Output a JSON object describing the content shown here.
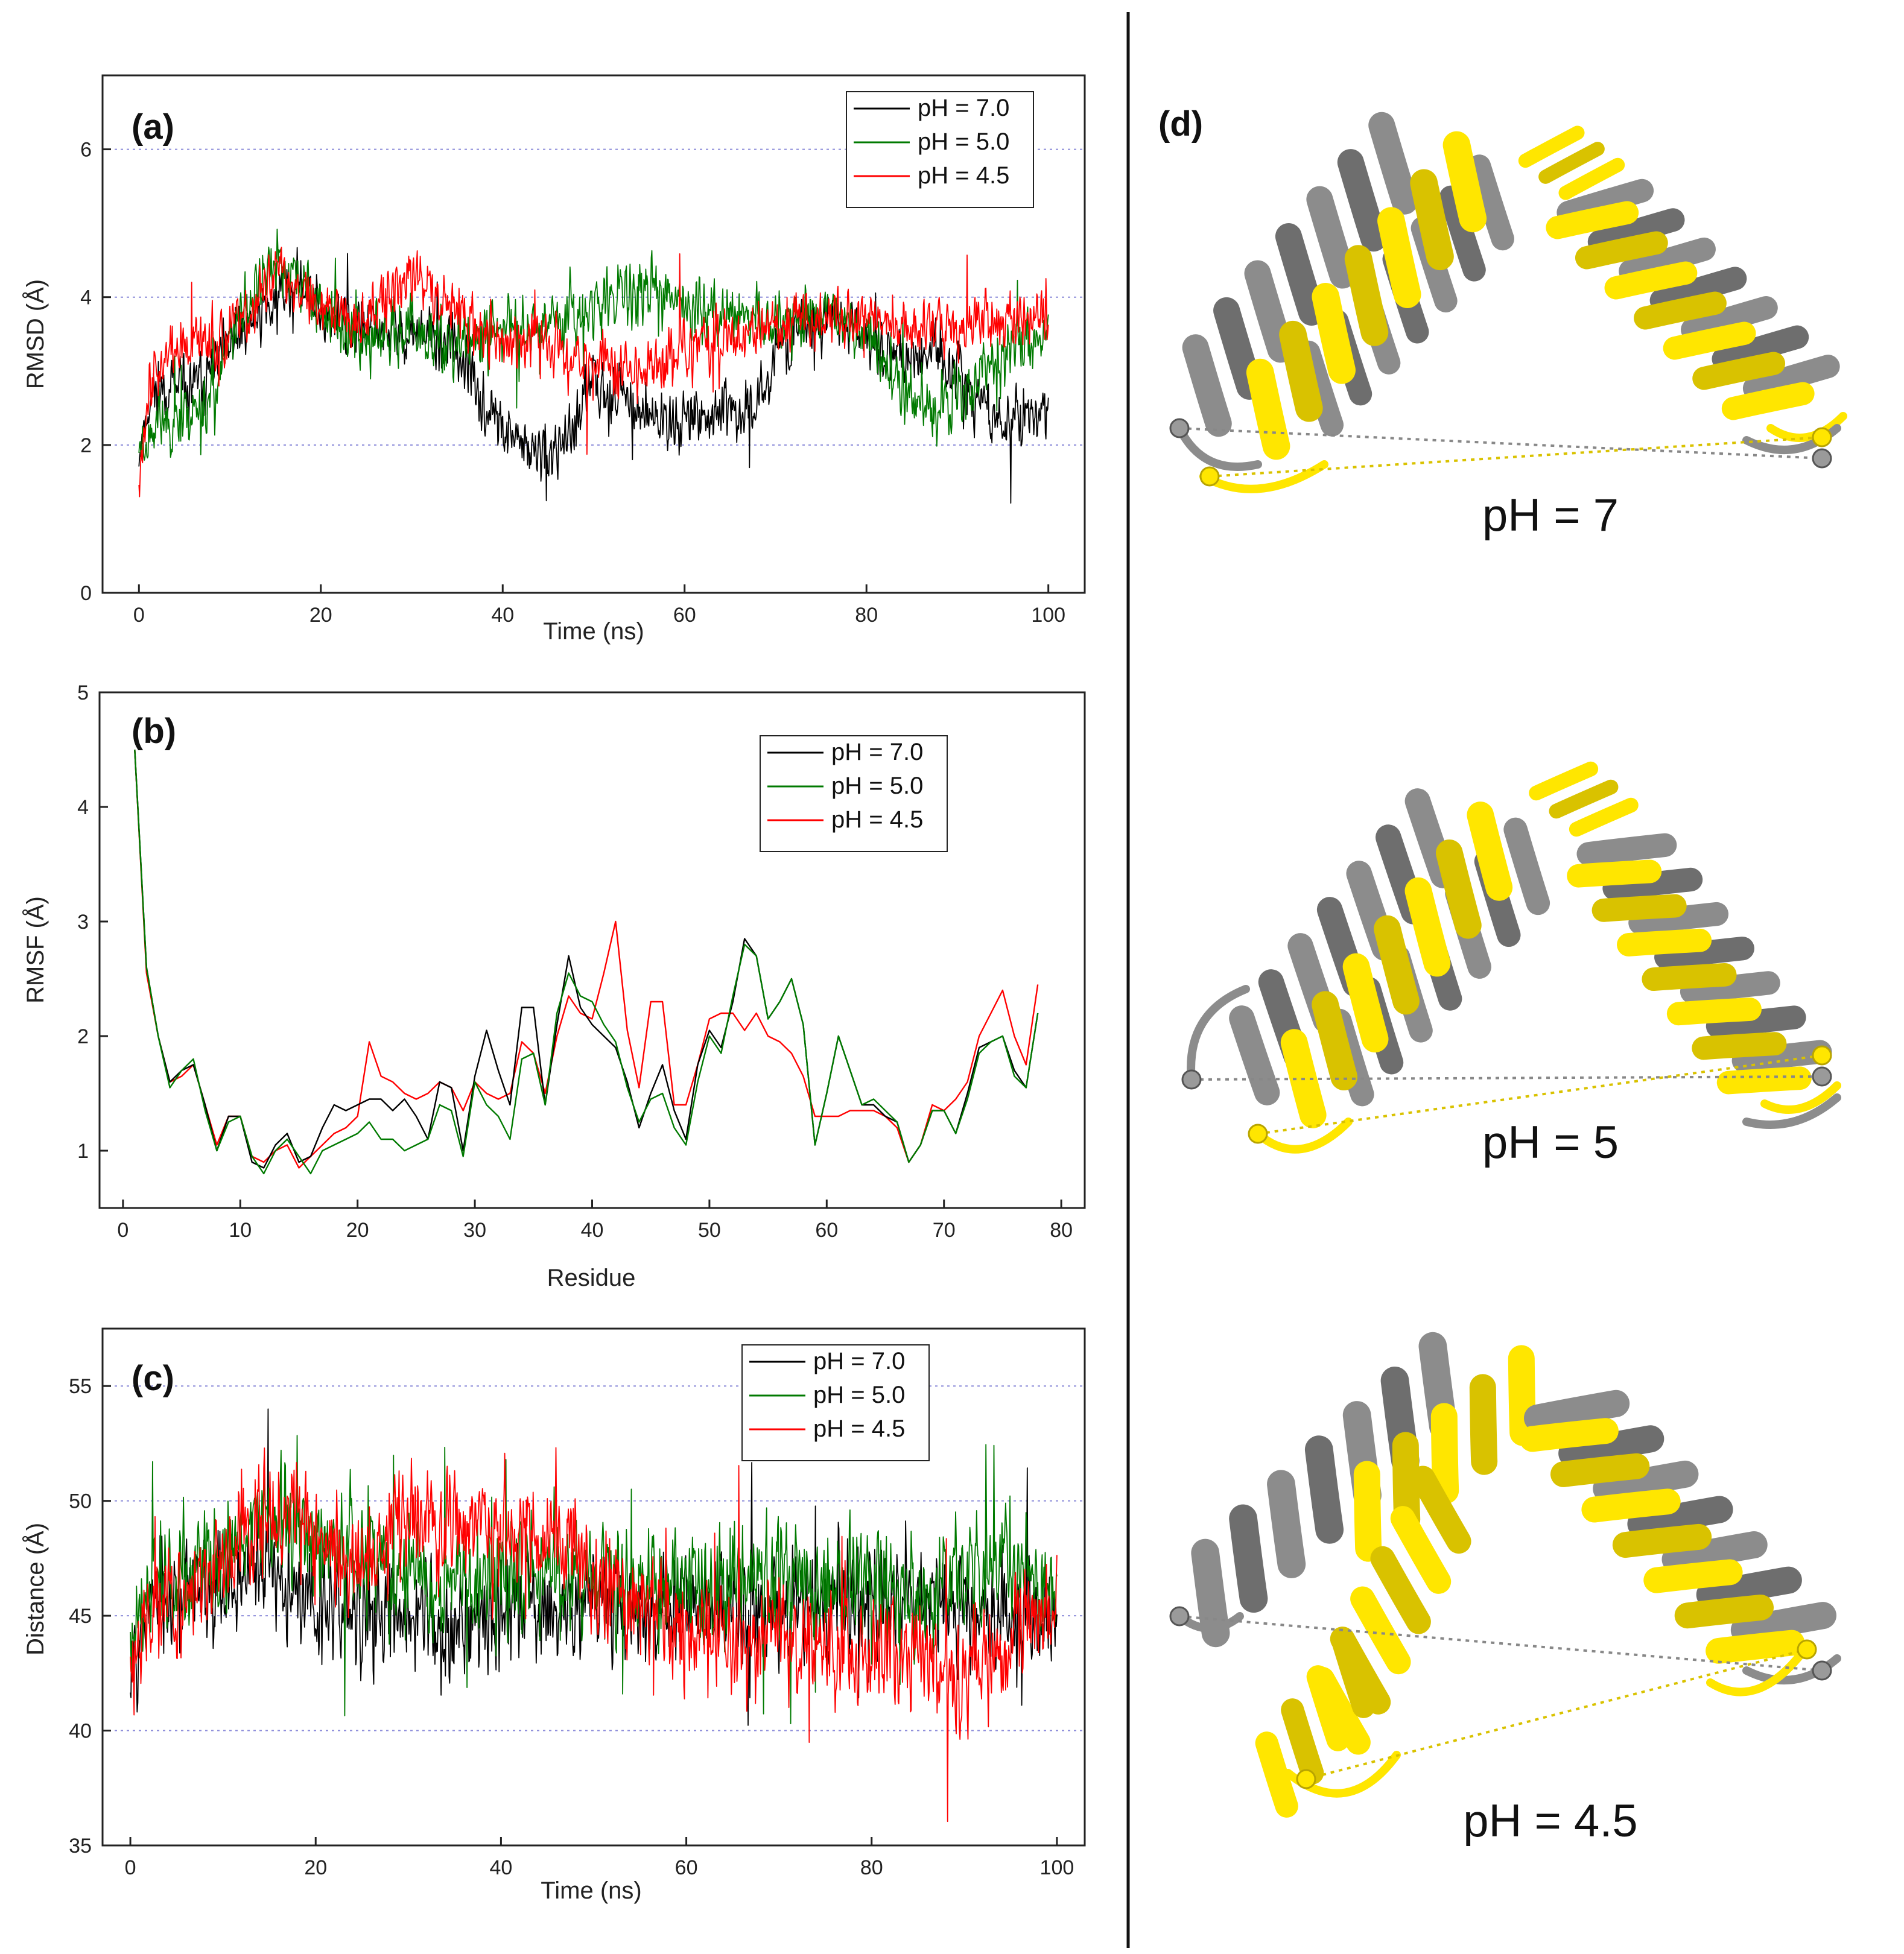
{
  "colors": {
    "ph70": "#000000",
    "ph50": "#007a00",
    "ph45": "#ff0000",
    "grid": "#8c8cd9",
    "helix_ref": "#8c8c8c",
    "helix_yellow": "#ffe600"
  },
  "chart_data": [
    {
      "id": "a",
      "panel_label": "(a)",
      "type": "line",
      "xlabel": "Time (ns)",
      "ylabel": "RMSD (Å)",
      "xlim": [
        -4,
        104
      ],
      "ylim": [
        0,
        7
      ],
      "xticks": [
        0,
        20,
        40,
        60,
        80,
        100
      ],
      "yticks": [
        0,
        2,
        4,
        6
      ],
      "grid_y": [
        2,
        4,
        6
      ],
      "legend_position": "top-right",
      "series": [
        {
          "name": "pH = 7.0",
          "color_key": "ph70",
          "seed": 11,
          "noise": 0.55,
          "x": [
            0,
            1,
            2,
            5,
            8,
            10,
            12,
            15,
            18,
            20,
            25,
            30,
            35,
            38,
            40,
            42,
            45,
            48,
            50,
            55,
            58,
            60,
            65,
            68,
            70,
            75,
            78,
            80,
            82,
            85,
            88,
            90,
            95,
            100
          ],
          "y": [
            1.9,
            2.5,
            2.8,
            2.7,
            3.0,
            3.3,
            3.6,
            4.0,
            4.2,
            3.8,
            3.6,
            3.5,
            3.3,
            2.5,
            2.2,
            2.0,
            1.8,
            2.2,
            2.9,
            2.5,
            2.3,
            2.4,
            2.4,
            2.5,
            3.3,
            3.7,
            3.6,
            3.5,
            3.3,
            3.2,
            3.2,
            2.9,
            2.3,
            2.4
          ]
        },
        {
          "name": "pH = 5.0",
          "color_key": "ph50",
          "seed": 23,
          "noise": 0.6,
          "x": [
            0,
            2,
            5,
            8,
            10,
            13,
            15,
            18,
            20,
            25,
            30,
            35,
            40,
            45,
            50,
            55,
            60,
            65,
            70,
            75,
            80,
            83,
            85,
            88,
            90,
            95,
            100
          ],
          "y": [
            2.0,
            2.3,
            2.4,
            2.6,
            3.4,
            4.2,
            4.4,
            4.2,
            3.8,
            3.4,
            3.5,
            3.3,
            3.6,
            3.7,
            3.9,
            4.1,
            3.9,
            3.8,
            3.6,
            3.8,
            3.6,
            2.9,
            2.6,
            2.6,
            2.7,
            3.2,
            3.6
          ]
        },
        {
          "name": "pH = 4.5",
          "color_key": "ph45",
          "seed": 37,
          "noise": 0.55,
          "x": [
            0,
            1,
            3,
            5,
            8,
            10,
            12,
            15,
            18,
            20,
            25,
            28,
            30,
            32,
            35,
            38,
            40,
            45,
            48,
            50,
            55,
            58,
            60,
            65,
            70,
            75,
            80,
            85,
            90,
            95,
            100
          ],
          "y": [
            1.6,
            2.8,
            3.2,
            3.3,
            3.4,
            3.5,
            3.8,
            4.3,
            4.1,
            3.9,
            3.8,
            4.0,
            4.3,
            4.2,
            3.8,
            3.5,
            3.4,
            3.4,
            3.2,
            3.1,
            3.0,
            3.1,
            3.3,
            3.5,
            3.6,
            3.7,
            3.7,
            3.6,
            3.6,
            3.7,
            3.8
          ]
        }
      ]
    },
    {
      "id": "b",
      "panel_label": "(b)",
      "type": "line",
      "xlabel": "Residue",
      "ylabel": "RMSF (Å)",
      "xlim": [
        -2,
        82
      ],
      "ylim": [
        0.5,
        5
      ],
      "xticks": [
        0,
        10,
        20,
        30,
        40,
        50,
        60,
        70,
        80
      ],
      "yticks": [
        1,
        2,
        3,
        4,
        5
      ],
      "grid_y": [],
      "legend_position": "upper-right",
      "x": [
        1,
        2,
        3,
        4,
        5,
        6,
        7,
        8,
        9,
        10,
        11,
        12,
        13,
        14,
        15,
        16,
        17,
        18,
        19,
        20,
        21,
        22,
        23,
        24,
        25,
        26,
        27,
        28,
        29,
        30,
        31,
        32,
        33,
        34,
        35,
        36,
        37,
        38,
        39,
        40,
        41,
        42,
        43,
        44,
        45,
        46,
        47,
        48,
        49,
        50,
        51,
        52,
        53,
        54,
        55,
        56,
        57,
        58,
        59,
        60,
        61,
        62,
        63,
        64,
        65,
        66,
        67,
        68,
        69,
        70,
        71,
        72,
        73,
        74,
        75,
        76,
        77,
        78
      ],
      "series": [
        {
          "name": "pH = 7.0",
          "color_key": "ph70",
          "values": [
            4.5,
            2.6,
            2.0,
            1.6,
            1.7,
            1.75,
            1.4,
            1.0,
            1.3,
            1.3,
            0.9,
            0.85,
            1.05,
            1.15,
            0.9,
            0.95,
            1.2,
            1.4,
            1.35,
            1.4,
            1.45,
            1.45,
            1.35,
            1.45,
            1.3,
            1.1,
            1.6,
            1.55,
            1.0,
            1.65,
            2.05,
            1.7,
            1.4,
            2.25,
            2.25,
            1.4,
            2.1,
            2.7,
            2.25,
            2.1,
            2.0,
            1.9,
            1.6,
            1.2,
            1.5,
            1.75,
            1.35,
            1.1,
            1.75,
            2.05,
            1.9,
            2.3,
            2.85,
            2.7,
            2.15,
            2.3,
            2.5,
            2.1,
            1.05,
            1.5,
            2.0,
            1.7,
            1.4,
            1.4,
            1.3,
            1.25,
            0.9,
            1.05,
            1.35,
            1.35,
            1.15,
            1.5,
            1.9,
            1.95,
            2.0,
            1.7,
            1.55,
            2.2
          ]
        },
        {
          "name": "pH = 5.0",
          "color_key": "ph50",
          "values": [
            4.5,
            2.6,
            2.0,
            1.55,
            1.7,
            1.8,
            1.35,
            1.0,
            1.25,
            1.3,
            0.95,
            0.8,
            1.0,
            1.1,
            0.95,
            0.8,
            1.0,
            1.05,
            1.1,
            1.15,
            1.25,
            1.1,
            1.1,
            1.0,
            1.05,
            1.1,
            1.4,
            1.35,
            0.95,
            1.6,
            1.4,
            1.3,
            1.1,
            1.8,
            1.85,
            1.4,
            2.2,
            2.55,
            2.35,
            2.3,
            2.1,
            1.95,
            1.55,
            1.25,
            1.45,
            1.5,
            1.2,
            1.05,
            1.6,
            2.0,
            1.85,
            2.35,
            2.8,
            2.7,
            2.15,
            2.3,
            2.5,
            2.1,
            1.05,
            1.5,
            2.0,
            1.7,
            1.4,
            1.45,
            1.35,
            1.25,
            0.9,
            1.05,
            1.35,
            1.35,
            1.15,
            1.45,
            1.85,
            1.95,
            2.0,
            1.65,
            1.55,
            2.2
          ]
        },
        {
          "name": "pH = 4.5",
          "color_key": "ph45",
          "values": [
            4.5,
            2.55,
            2.0,
            1.6,
            1.65,
            1.75,
            1.4,
            1.05,
            1.3,
            1.3,
            0.95,
            0.9,
            1.0,
            1.05,
            0.85,
            0.95,
            1.05,
            1.15,
            1.2,
            1.3,
            1.95,
            1.65,
            1.6,
            1.5,
            1.45,
            1.5,
            1.6,
            1.55,
            1.35,
            1.6,
            1.5,
            1.45,
            1.5,
            1.95,
            1.85,
            1.5,
            2.0,
            2.35,
            2.2,
            2.15,
            2.55,
            3.0,
            2.05,
            1.55,
            2.3,
            2.3,
            1.4,
            1.4,
            1.75,
            2.15,
            2.2,
            2.2,
            2.05,
            2.2,
            2.0,
            1.95,
            1.85,
            1.65,
            1.3,
            1.3,
            1.3,
            1.35,
            1.35,
            1.35,
            1.3,
            1.2,
            0.9,
            1.05,
            1.4,
            1.35,
            1.45,
            1.6,
            2.0,
            2.2,
            2.4,
            2.0,
            1.75,
            2.45
          ]
        }
      ]
    },
    {
      "id": "c",
      "panel_label": "(c)",
      "type": "line",
      "xlabel": "Time (ns)",
      "ylabel": "Distance (Å)",
      "xlim": [
        -3,
        103
      ],
      "ylim": [
        35,
        57.5
      ],
      "xticks": [
        0,
        20,
        40,
        60,
        80,
        100
      ],
      "yticks": [
        35,
        40,
        45,
        50,
        55
      ],
      "grid_y": [
        40,
        45,
        50,
        55
      ],
      "legend_position": "top-center",
      "series": [
        {
          "name": "pH = 7.0",
          "color_key": "ph70",
          "seed": 53,
          "noise": 3.2,
          "x": [
            0,
            2,
            5,
            8,
            10,
            15,
            18,
            20,
            25,
            30,
            35,
            40,
            45,
            50,
            55,
            60,
            65,
            70,
            75,
            80,
            85,
            90,
            95,
            100
          ],
          "y": [
            43.5,
            45.5,
            46.0,
            46.5,
            46.5,
            47.0,
            46.0,
            45.5,
            45.0,
            45.0,
            44.5,
            45.5,
            45.5,
            46.0,
            45.0,
            45.5,
            45.5,
            45.5,
            45.5,
            46.0,
            45.5,
            45.0,
            45.0,
            45.0
          ]
        },
        {
          "name": "pH = 5.0",
          "color_key": "ph50",
          "seed": 61,
          "noise": 3.4,
          "x": [
            0,
            2,
            5,
            8,
            10,
            15,
            18,
            20,
            25,
            30,
            35,
            40,
            45,
            50,
            55,
            60,
            65,
            70,
            75,
            80,
            85,
            90,
            93,
            95,
            100
          ],
          "y": [
            44.0,
            46.0,
            46.5,
            47.0,
            47.5,
            49.5,
            49.0,
            48.0,
            47.5,
            47.0,
            46.5,
            46.5,
            47.0,
            46.5,
            46.0,
            46.0,
            46.5,
            46.5,
            46.0,
            46.0,
            46.0,
            46.5,
            48.0,
            47.0,
            46.0
          ]
        },
        {
          "name": "pH = 4.5",
          "color_key": "ph45",
          "seed": 79,
          "noise": 3.3,
          "x": [
            0,
            2,
            5,
            8,
            10,
            14,
            18,
            20,
            25,
            28,
            30,
            35,
            40,
            45,
            48,
            50,
            55,
            60,
            65,
            70,
            75,
            80,
            85,
            88,
            90,
            95,
            100
          ],
          "y": [
            43.0,
            45.5,
            46.0,
            46.5,
            47.0,
            49.0,
            49.5,
            48.0,
            47.0,
            48.5,
            49.5,
            49.0,
            49.0,
            48.5,
            48.0,
            46.5,
            45.5,
            44.5,
            44.0,
            44.0,
            44.0,
            43.5,
            43.5,
            42.5,
            42.0,
            44.0,
            45.5
          ]
        }
      ]
    }
  ],
  "panel_d": {
    "label": "(d)",
    "structures": [
      {
        "caption": "pH = 7"
      },
      {
        "caption": "pH = 5"
      },
      {
        "caption": "pH = 4.5"
      }
    ]
  }
}
